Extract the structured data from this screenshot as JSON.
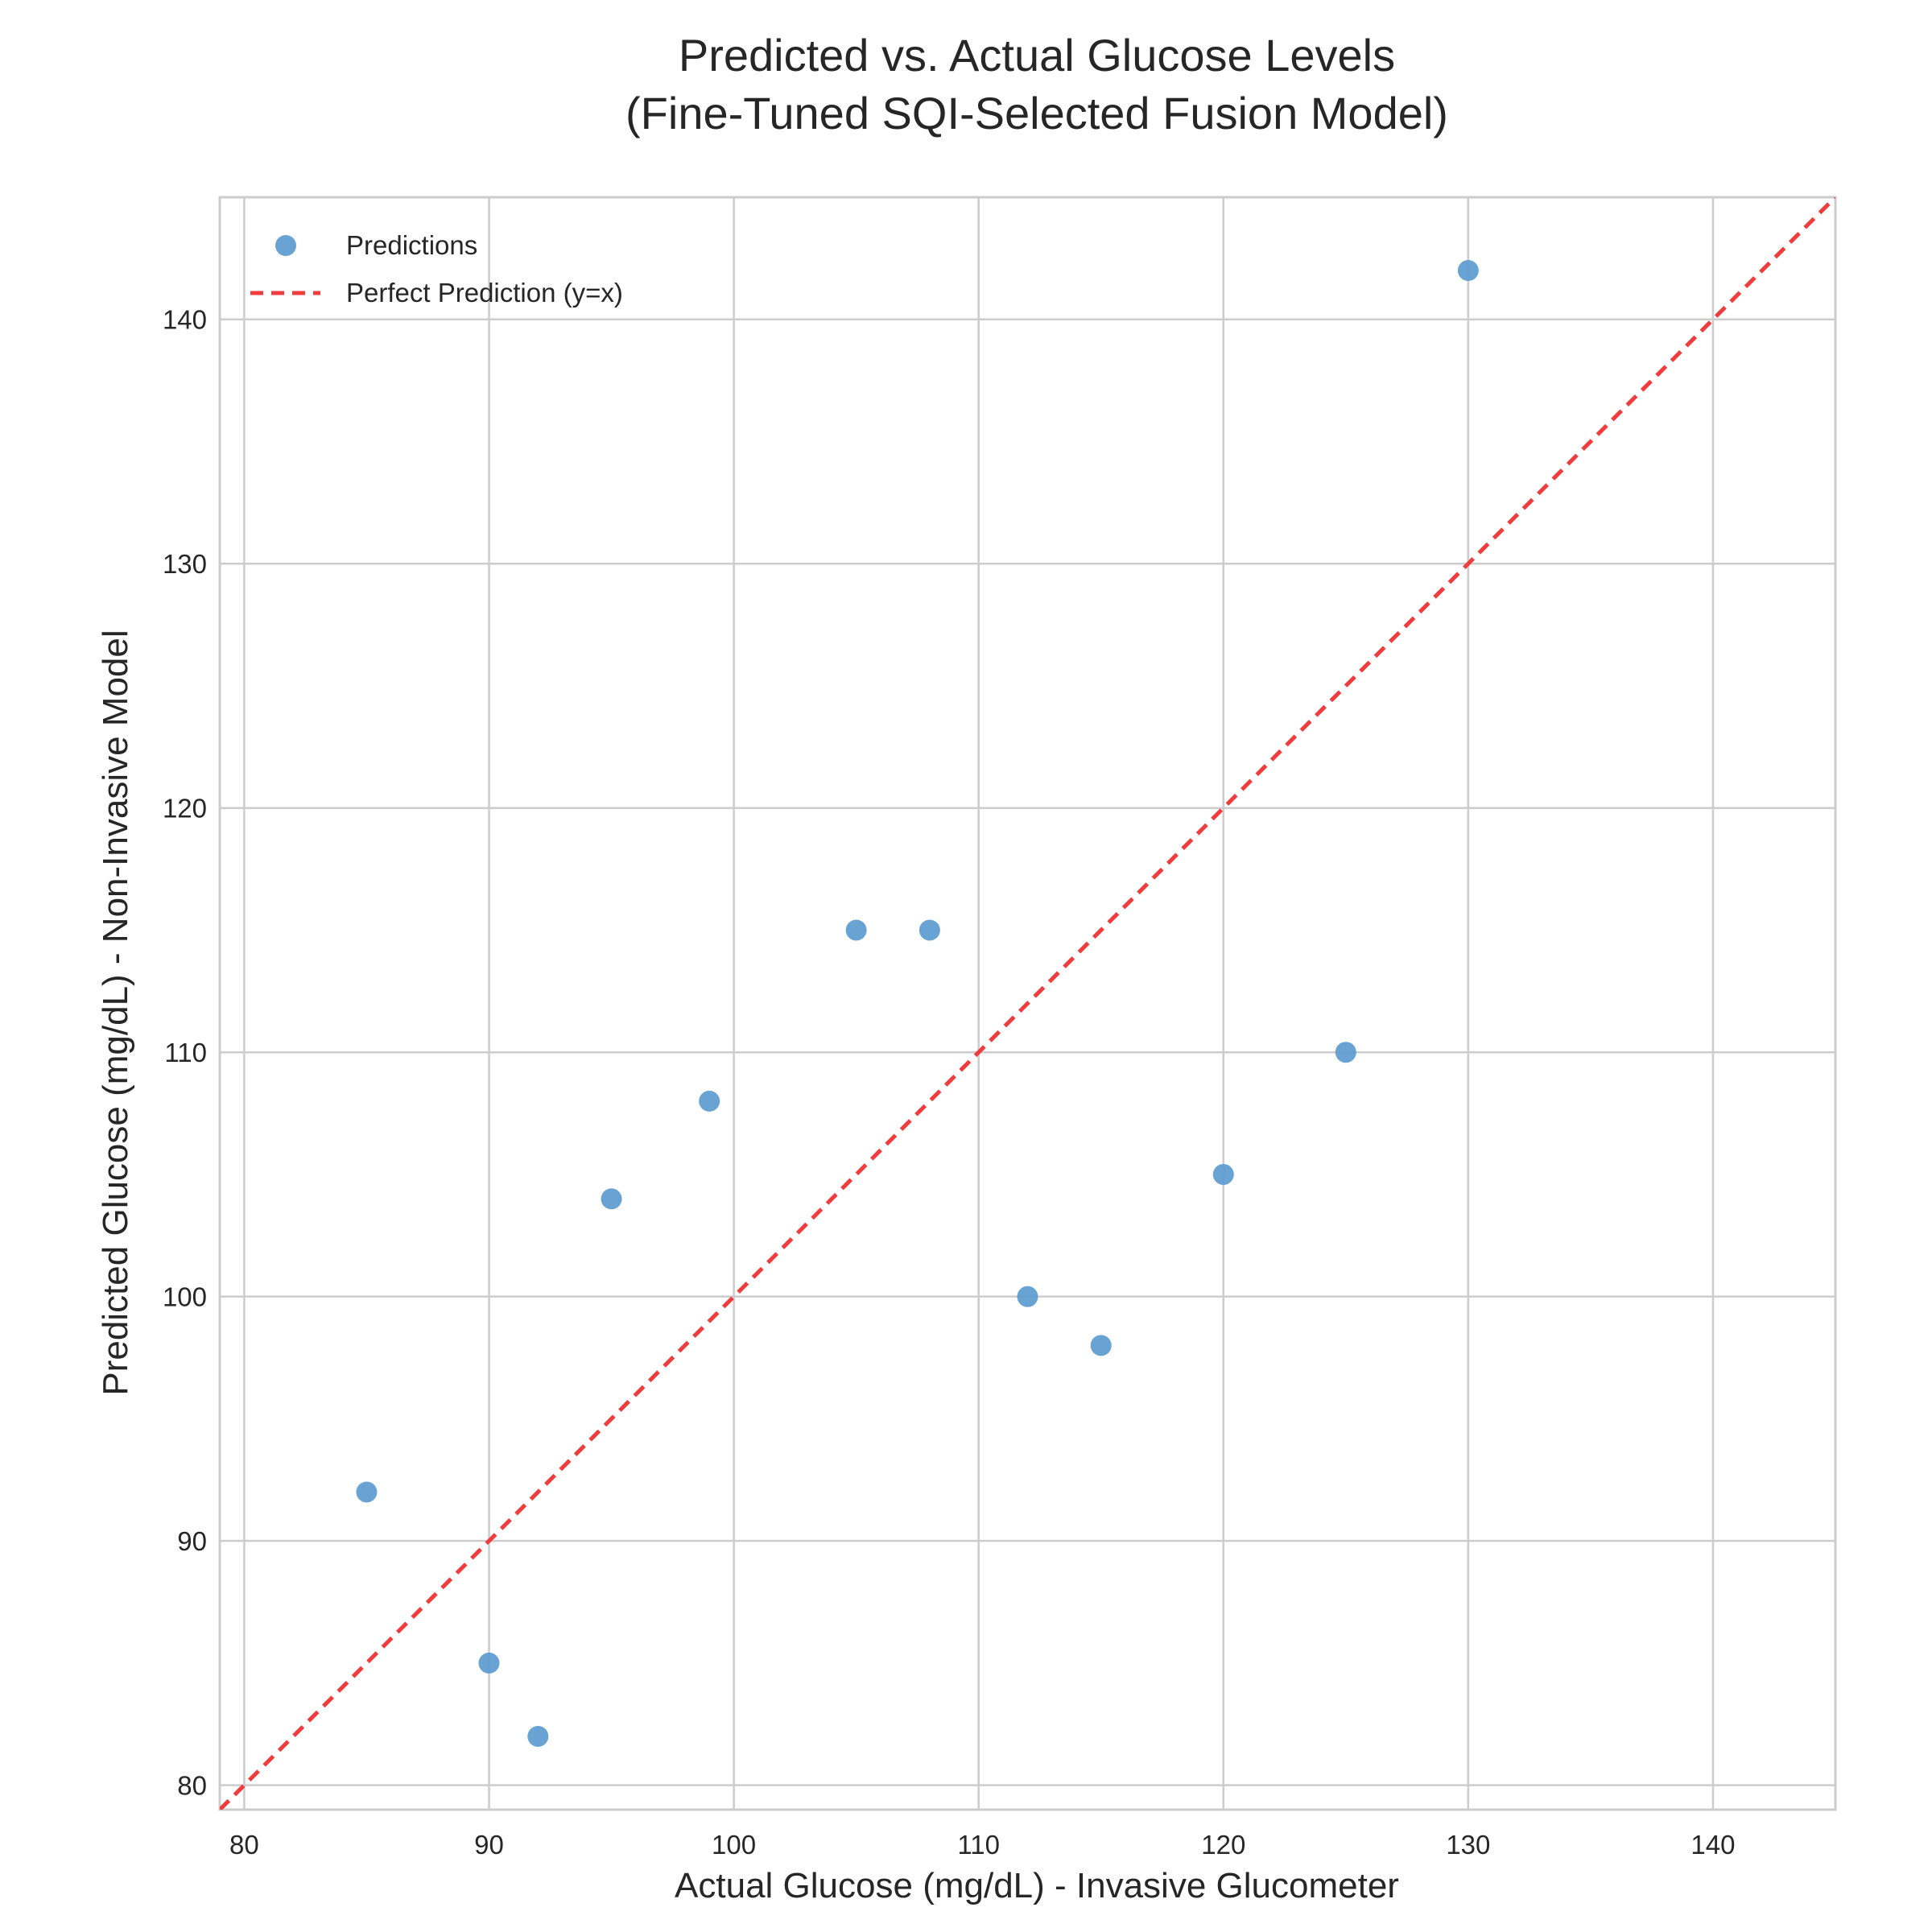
{
  "chart_data": {
    "type": "scatter",
    "title": "Predicted vs. Actual Glucose Levels",
    "subtitle": "(Fine-Tuned SQI-Selected Fusion Model)",
    "xlabel": "Actual Glucose (mg/dL) - Invasive Glucometer",
    "ylabel": "Predicted Glucose (mg/dL) - Non-Invasive Model",
    "xlim": [
      79,
      145
    ],
    "ylim": [
      79,
      145
    ],
    "x_ticks": [
      80,
      90,
      100,
      110,
      120,
      130,
      140
    ],
    "y_ticks": [
      80,
      90,
      100,
      110,
      120,
      130,
      140
    ],
    "grid": true,
    "legend_position": "top-left",
    "series": [
      {
        "name": "Predictions",
        "kind": "scatter",
        "color": "#5B9BD0",
        "points": [
          {
            "x": 85,
            "y": 92
          },
          {
            "x": 90,
            "y": 85
          },
          {
            "x": 92,
            "y": 82
          },
          {
            "x": 95,
            "y": 104
          },
          {
            "x": 99,
            "y": 108
          },
          {
            "x": 105,
            "y": 115
          },
          {
            "x": 108,
            "y": 115
          },
          {
            "x": 112,
            "y": 100
          },
          {
            "x": 115,
            "y": 98
          },
          {
            "x": 120,
            "y": 105
          },
          {
            "x": 125,
            "y": 110
          },
          {
            "x": 130,
            "y": 142
          }
        ]
      },
      {
        "name": "Perfect Prediction (y=x)",
        "kind": "reference-line",
        "style": "dashed",
        "color": "#F03C3C",
        "points": [
          {
            "x": 79,
            "y": 79
          },
          {
            "x": 145,
            "y": 145
          }
        ]
      }
    ]
  }
}
